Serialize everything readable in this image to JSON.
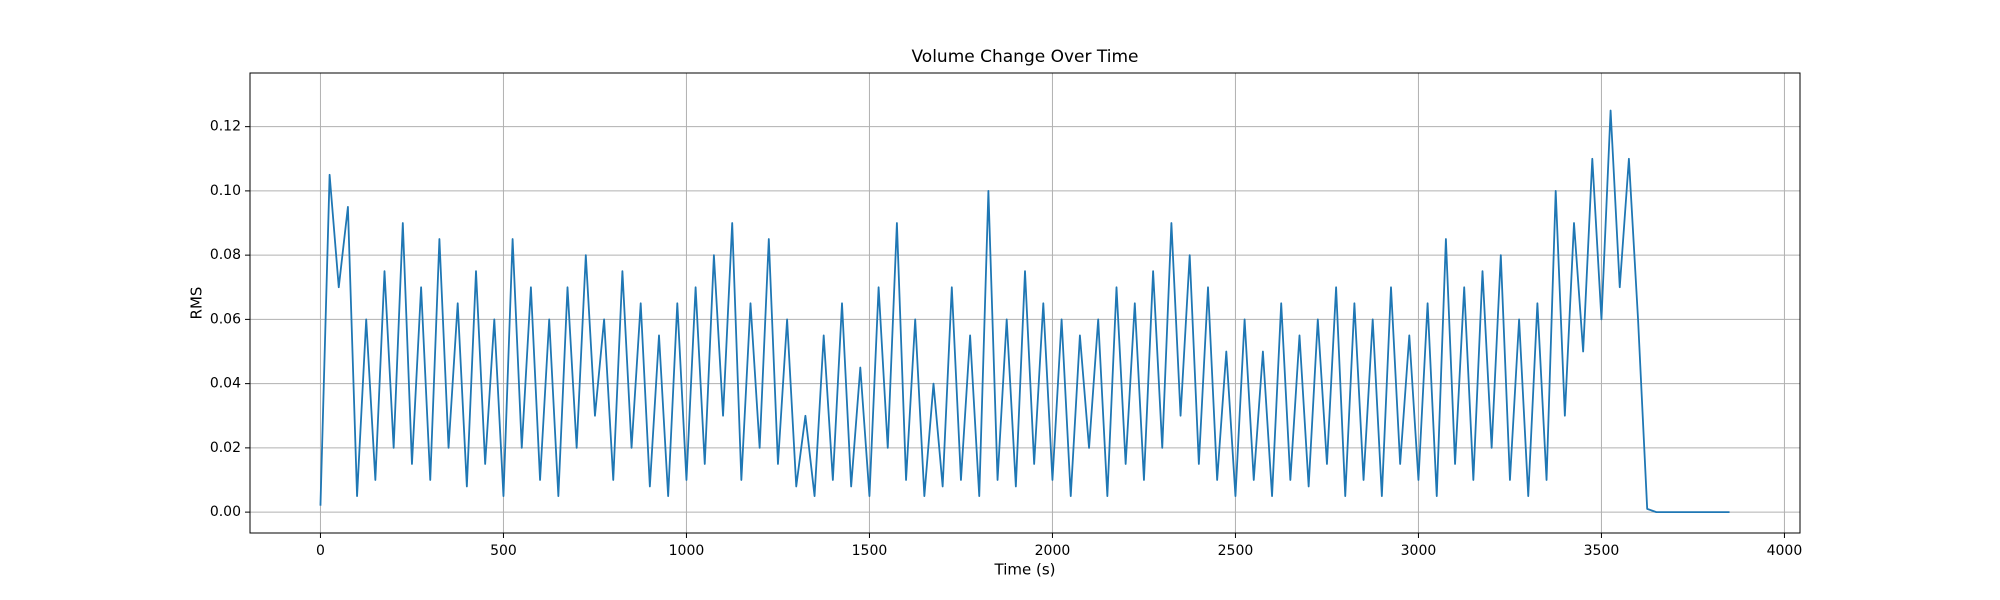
{
  "chart_data": {
    "type": "line",
    "title": "Volume Change Over Time",
    "x_label": "Time (s)",
    "y_label": "RMS",
    "x": [
      0,
      25,
      50,
      75,
      100,
      125,
      150,
      175,
      200,
      225,
      250,
      275,
      300,
      325,
      350,
      375,
      400,
      425,
      450,
      475,
      500,
      525,
      550,
      575,
      600,
      625,
      650,
      675,
      700,
      725,
      750,
      775,
      800,
      825,
      850,
      875,
      900,
      925,
      950,
      975,
      1000,
      1025,
      1050,
      1075,
      1100,
      1125,
      1150,
      1175,
      1200,
      1225,
      1250,
      1275,
      1300,
      1325,
      1350,
      1375,
      1400,
      1425,
      1450,
      1475,
      1500,
      1525,
      1550,
      1575,
      1600,
      1625,
      1650,
      1675,
      1700,
      1725,
      1750,
      1775,
      1800,
      1825,
      1850,
      1875,
      1900,
      1925,
      1950,
      1975,
      2000,
      2025,
      2050,
      2075,
      2100,
      2125,
      2150,
      2175,
      2200,
      2225,
      2250,
      2275,
      2300,
      2325,
      2350,
      2375,
      2400,
      2425,
      2450,
      2475,
      2500,
      2525,
      2550,
      2575,
      2600,
      2625,
      2650,
      2675,
      2700,
      2725,
      2750,
      2775,
      2800,
      2825,
      2850,
      2875,
      2900,
      2925,
      2950,
      2975,
      3000,
      3025,
      3050,
      3075,
      3100,
      3125,
      3150,
      3175,
      3200,
      3225,
      3250,
      3275,
      3300,
      3325,
      3350,
      3375,
      3400,
      3425,
      3450,
      3475,
      3500,
      3525,
      3550,
      3575,
      3600,
      3625,
      3650,
      3675,
      3700,
      3725,
      3750,
      3775,
      3800,
      3825,
      3850
    ],
    "series": [
      {
        "name": "RMS",
        "color": "#1f77b4",
        "values": [
          0.002,
          0.105,
          0.07,
          0.095,
          0.005,
          0.06,
          0.01,
          0.075,
          0.02,
          0.09,
          0.015,
          0.07,
          0.01,
          0.085,
          0.02,
          0.065,
          0.008,
          0.075,
          0.015,
          0.06,
          0.005,
          0.085,
          0.02,
          0.07,
          0.01,
          0.06,
          0.005,
          0.07,
          0.02,
          0.08,
          0.03,
          0.06,
          0.01,
          0.075,
          0.02,
          0.065,
          0.008,
          0.055,
          0.005,
          0.065,
          0.01,
          0.07,
          0.015,
          0.08,
          0.03,
          0.09,
          0.01,
          0.065,
          0.02,
          0.085,
          0.015,
          0.06,
          0.008,
          0.03,
          0.005,
          0.055,
          0.01,
          0.065,
          0.008,
          0.045,
          0.005,
          0.07,
          0.02,
          0.09,
          0.01,
          0.06,
          0.005,
          0.04,
          0.008,
          0.07,
          0.01,
          0.055,
          0.005,
          0.1,
          0.01,
          0.06,
          0.008,
          0.075,
          0.015,
          0.065,
          0.01,
          0.06,
          0.005,
          0.055,
          0.02,
          0.06,
          0.005,
          0.07,
          0.015,
          0.065,
          0.01,
          0.075,
          0.02,
          0.09,
          0.03,
          0.08,
          0.015,
          0.07,
          0.01,
          0.05,
          0.005,
          0.06,
          0.01,
          0.05,
          0.005,
          0.065,
          0.01,
          0.055,
          0.008,
          0.06,
          0.015,
          0.07,
          0.005,
          0.065,
          0.01,
          0.06,
          0.005,
          0.07,
          0.015,
          0.055,
          0.01,
          0.065,
          0.005,
          0.085,
          0.015,
          0.07,
          0.01,
          0.075,
          0.02,
          0.08,
          0.01,
          0.06,
          0.005,
          0.065,
          0.01,
          0.1,
          0.03,
          0.09,
          0.05,
          0.11,
          0.06,
          0.125,
          0.07,
          0.11,
          0.06,
          0.001,
          0,
          0,
          0,
          0,
          0,
          0,
          0,
          0,
          0
        ]
      }
    ],
    "xlim": [
      -192.5,
      4042.5
    ],
    "xticks": [
      0,
      500,
      1000,
      1500,
      2000,
      2500,
      3000,
      3500,
      4000
    ],
    "ylim": [
      -0.0065,
      0.1367
    ],
    "yticks": [
      {
        "value": 0,
        "label": "0.00"
      },
      {
        "value": 0.02,
        "label": "0.02"
      },
      {
        "value": 0.04,
        "label": "0.04"
      },
      {
        "value": 0.06,
        "label": "0.06"
      },
      {
        "value": 0.08,
        "label": "0.08"
      },
      {
        "value": 0.1,
        "label": "0.10"
      },
      {
        "value": 0.12,
        "label": "0.12"
      }
    ],
    "grid": true
  }
}
